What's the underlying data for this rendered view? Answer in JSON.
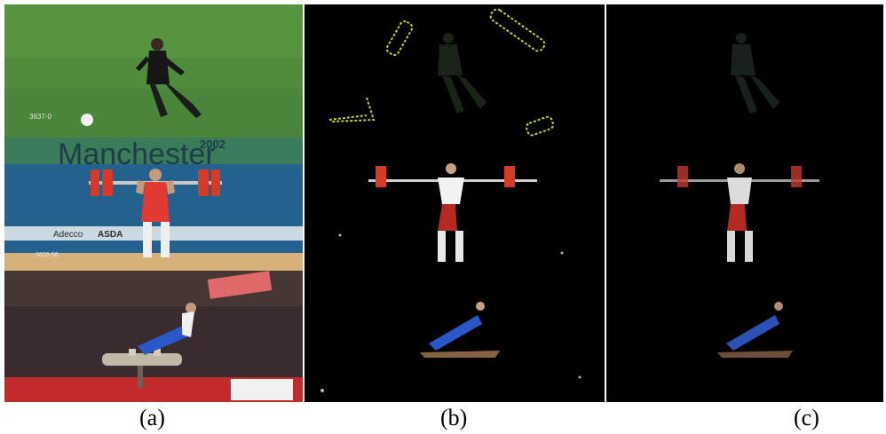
{
  "figure": {
    "panels": [
      {
        "label": "(a)"
      },
      {
        "label": "(b)"
      },
      {
        "label": "(c)"
      }
    ]
  },
  "scene_text": {
    "frame_code_1": "3637-0",
    "banner_year": "2002",
    "banner_city": "Manchester",
    "frame_code_2": "3628-56",
    "sponsor_1": "Adecco",
    "sponsor_2": "ASDA"
  },
  "colors": {
    "grass": "#4e8a3a",
    "arena_blue": "#1f5a8a",
    "weight_red": "#d63b2a",
    "highlight_green": "#b4d23c",
    "background": "#000000"
  }
}
